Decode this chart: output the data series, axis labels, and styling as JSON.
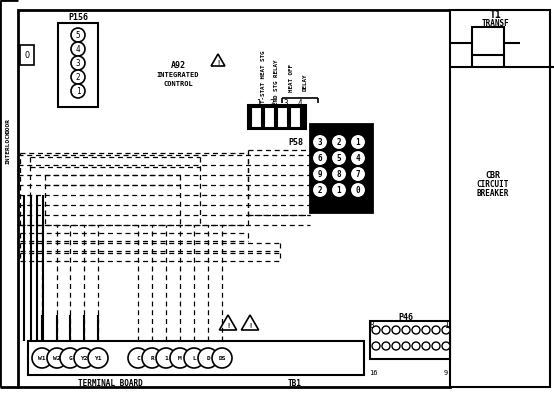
{
  "bg_color": "#ffffff",
  "line_color": "#000000",
  "figsize": [
    5.54,
    3.95
  ],
  "dpi": 100,
  "p156_labels": [
    "5",
    "4",
    "3",
    "2",
    "1"
  ],
  "p58_rows": [
    [
      "3",
      "2",
      "1"
    ],
    [
      "6",
      "5",
      "4"
    ],
    [
      "9",
      "8",
      "7"
    ],
    [
      "2",
      "1",
      "0"
    ]
  ],
  "terminals": [
    [
      "W1",
      42
    ],
    [
      "W2",
      57
    ],
    [
      "G",
      70
    ],
    [
      "Y2",
      84
    ],
    [
      "Y1",
      98
    ],
    [
      "C",
      138
    ],
    [
      "R",
      152
    ],
    [
      "1",
      166
    ],
    [
      "M",
      180
    ],
    [
      "L",
      194
    ],
    [
      "D",
      208
    ],
    [
      "DS",
      222
    ]
  ],
  "connector_pins": [
    "1",
    "2",
    "3",
    "4"
  ]
}
